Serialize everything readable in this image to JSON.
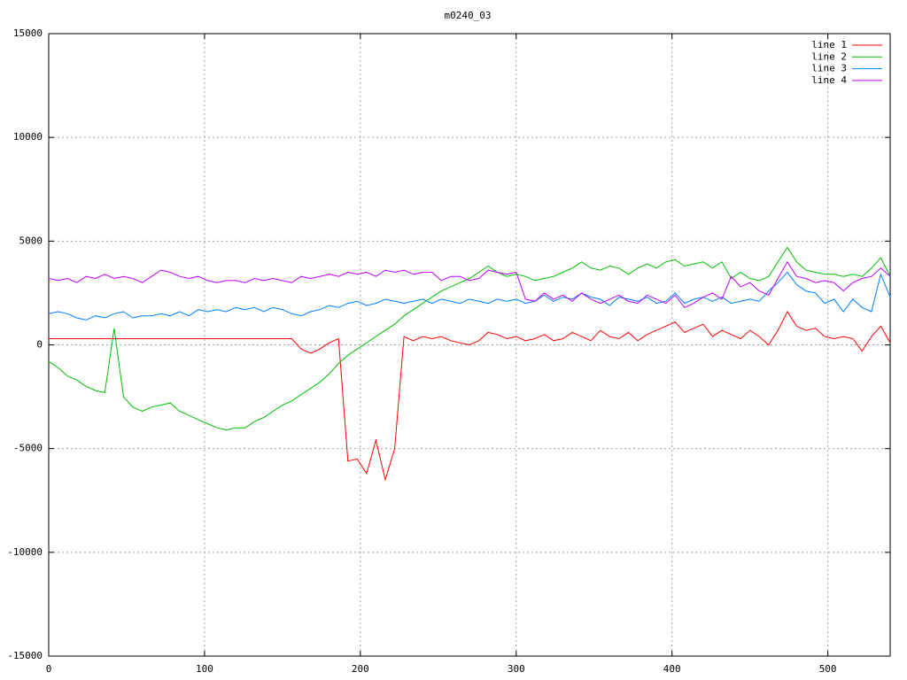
{
  "chart_data": {
    "type": "line",
    "title": "m0240_03",
    "x": [
      0,
      6,
      12,
      18,
      24,
      30,
      36,
      42,
      48,
      54,
      60,
      66,
      72,
      78,
      84,
      90,
      96,
      102,
      108,
      114,
      120,
      126,
      132,
      138,
      144,
      150,
      156,
      162,
      168,
      174,
      180,
      186,
      192,
      198,
      204,
      210,
      216,
      222,
      228,
      234,
      240,
      246,
      252,
      258,
      264,
      270,
      276,
      282,
      288,
      294,
      300,
      306,
      312,
      318,
      324,
      330,
      336,
      342,
      348,
      354,
      360,
      366,
      372,
      378,
      384,
      390,
      396,
      402,
      408,
      414,
      420,
      426,
      432,
      438,
      444,
      450,
      456,
      462,
      468,
      474,
      480,
      486,
      492,
      498,
      504,
      510,
      516,
      522,
      528,
      534,
      540
    ],
    "series": [
      {
        "name": "line 1",
        "color": "#ff0000",
        "values": [
          300,
          300,
          300,
          300,
          300,
          300,
          300,
          300,
          300,
          300,
          300,
          300,
          300,
          300,
          300,
          300,
          300,
          300,
          300,
          300,
          300,
          300,
          300,
          300,
          300,
          300,
          300,
          -200,
          -400,
          -200,
          100,
          300,
          -5600,
          -5500,
          -6200,
          -4600,
          -6500,
          -5000,
          400,
          200,
          400,
          300,
          400,
          200,
          100,
          0,
          200,
          600,
          500,
          300,
          400,
          200,
          300,
          500,
          200,
          300,
          600,
          400,
          200,
          700,
          400,
          300,
          600,
          200,
          500,
          700,
          900,
          1100,
          600,
          800,
          1000,
          400,
          700,
          500,
          300,
          700,
          400,
          0,
          700,
          1600,
          900,
          700,
          800,
          400,
          300,
          400,
          300,
          -300,
          400,
          900,
          100
        ]
      },
      {
        "name": "line 2",
        "color": "#00c000",
        "values": [
          -800,
          -1100,
          -1500,
          -1700,
          -2000,
          -2200,
          -2300,
          800,
          -2500,
          -3000,
          -3200,
          -3000,
          -2900,
          -2800,
          -3200,
          -3400,
          -3600,
          -3800,
          -4000,
          -4100,
          -4000,
          -4000,
          -3700,
          -3500,
          -3200,
          -2900,
          -2700,
          -2400,
          -2100,
          -1800,
          -1400,
          -900,
          -500,
          -200,
          100,
          400,
          700,
          1000,
          1400,
          1700,
          2000,
          2300,
          2600,
          2800,
          3000,
          3200,
          3500,
          3800,
          3500,
          3300,
          3400,
          3300,
          3100,
          3200,
          3300,
          3500,
          3700,
          4000,
          3700,
          3600,
          3800,
          3700,
          3400,
          3700,
          3900,
          3700,
          4000,
          4100,
          3800,
          3900,
          4000,
          3700,
          4000,
          3200,
          3500,
          3200,
          3100,
          3300,
          4000,
          4700,
          4000,
          3600,
          3500,
          3400,
          3400,
          3300,
          3400,
          3300,
          3700,
          4200,
          3300
        ]
      },
      {
        "name": "line 3",
        "color": "#0080ff",
        "values": [
          1500,
          1600,
          1500,
          1300,
          1200,
          1400,
          1300,
          1500,
          1600,
          1300,
          1400,
          1400,
          1500,
          1400,
          1600,
          1400,
          1700,
          1600,
          1700,
          1600,
          1800,
          1700,
          1800,
          1600,
          1800,
          1700,
          1500,
          1400,
          1600,
          1700,
          1900,
          1800,
          2000,
          2100,
          1900,
          2000,
          2200,
          2100,
          2000,
          2100,
          2200,
          2000,
          2200,
          2100,
          2000,
          2200,
          2100,
          2000,
          2200,
          2100,
          2200,
          2000,
          2100,
          2400,
          2100,
          2300,
          2200,
          2500,
          2300,
          2200,
          1900,
          2300,
          2200,
          2100,
          2300,
          2000,
          2100,
          2500,
          2000,
          2200,
          2300,
          2100,
          2300,
          2000,
          2100,
          2200,
          2100,
          2600,
          3000,
          3500,
          2900,
          2600,
          2500,
          2000,
          2200,
          1600,
          2200,
          1800,
          1600,
          3400,
          2300
        ]
      },
      {
        "name": "line 4",
        "color": "#c000ff",
        "values": [
          3200,
          3100,
          3200,
          3000,
          3300,
          3200,
          3400,
          3200,
          3300,
          3200,
          3000,
          3300,
          3600,
          3500,
          3300,
          3200,
          3300,
          3100,
          3000,
          3100,
          3100,
          3000,
          3200,
          3100,
          3200,
          3100,
          3000,
          3300,
          3200,
          3300,
          3400,
          3300,
          3500,
          3400,
          3500,
          3300,
          3600,
          3500,
          3600,
          3400,
          3500,
          3500,
          3100,
          3300,
          3300,
          3100,
          3200,
          3600,
          3500,
          3400,
          3500,
          2200,
          2100,
          2500,
          2200,
          2400,
          2100,
          2500,
          2200,
          2000,
          2200,
          2400,
          2100,
          2000,
          2400,
          2200,
          2000,
          2400,
          1800,
          2000,
          2300,
          2500,
          2200,
          3300,
          2800,
          3000,
          2600,
          2400,
          3200,
          4000,
          3300,
          3200,
          3000,
          3100,
          3000,
          2600,
          3000,
          3200,
          3300,
          3700,
          3300
        ]
      }
    ],
    "xlim": [
      0,
      540
    ],
    "xticks": [
      0,
      100,
      200,
      300,
      400,
      500
    ],
    "ylim": [
      -15000,
      15000
    ],
    "yticks": [
      -15000,
      -10000,
      -5000,
      0,
      5000,
      10000,
      15000
    ],
    "grid": true,
    "legend": "top-right"
  }
}
